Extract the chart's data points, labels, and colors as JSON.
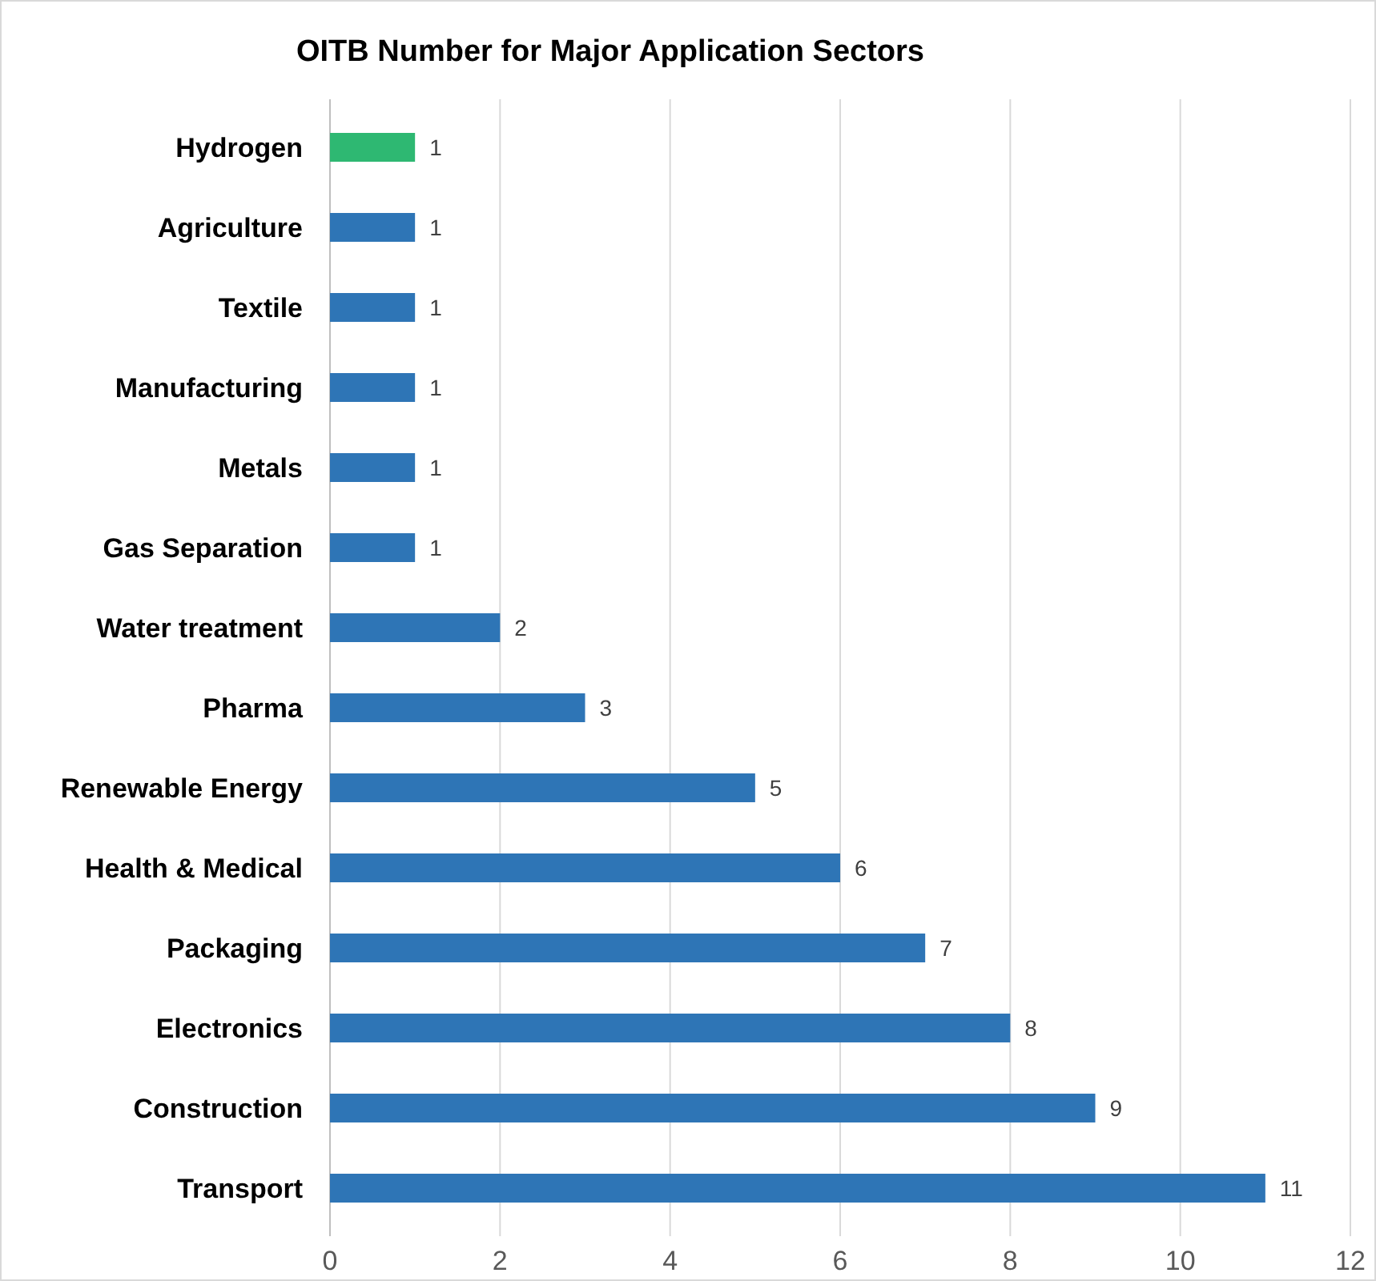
{
  "chart_data": {
    "type": "bar",
    "orientation": "horizontal",
    "title": "OITB Number for Major Application Sectors",
    "categories": [
      "Hydrogen",
      "Agriculture",
      "Textile",
      "Manufacturing",
      "Metals",
      "Gas Separation",
      "Water treatment",
      "Pharma",
      "Renewable Energy",
      "Health & Medical",
      "Packaging",
      "Electronics",
      "Construction",
      "Transport"
    ],
    "values": [
      1,
      1,
      1,
      1,
      1,
      1,
      2,
      3,
      5,
      6,
      7,
      8,
      9,
      11
    ],
    "colors": [
      "#2eb872",
      "#2e75b6",
      "#2e75b6",
      "#2e75b6",
      "#2e75b6",
      "#2e75b6",
      "#2e75b6",
      "#2e75b6",
      "#2e75b6",
      "#2e75b6",
      "#2e75b6",
      "#2e75b6",
      "#2e75b6",
      "#2e75b6"
    ],
    "xlim": [
      0,
      12
    ],
    "xticks": [
      0,
      2,
      4,
      6,
      8,
      10,
      12
    ],
    "grid": "x",
    "data_labels": true
  }
}
